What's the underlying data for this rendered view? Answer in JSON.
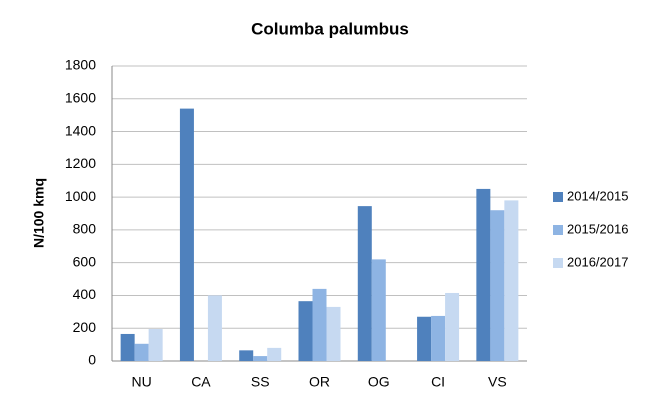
{
  "chart_data": {
    "type": "bar",
    "title": "Columba palumbus",
    "y_label": "N/100 kmq",
    "categories": [
      "NU",
      "CA",
      "SS",
      "OR",
      "OG",
      "CI",
      "VS"
    ],
    "series": [
      {
        "name": "2014/2015",
        "color": "#4f81bd",
        "values": [
          165,
          1540,
          65,
          365,
          945,
          270,
          1050
        ]
      },
      {
        "name": "2015/2016",
        "color": "#8eb4e3",
        "values": [
          105,
          0,
          30,
          440,
          620,
          275,
          920
        ]
      },
      {
        "name": "2016/2017",
        "color": "#c6d9f1",
        "values": [
          195,
          400,
          80,
          330,
          0,
          415,
          980
        ]
      }
    ],
    "ylim": [
      0,
      1800
    ],
    "yticks": [
      0,
      200,
      400,
      600,
      800,
      1000,
      1200,
      1400,
      1600,
      1800
    ],
    "grid": true,
    "legend": "right"
  }
}
